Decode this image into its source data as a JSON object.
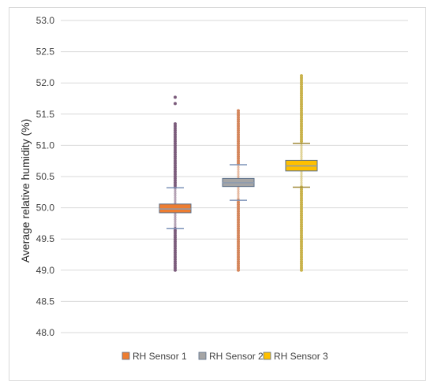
{
  "chart_data": {
    "type": "box",
    "title": "",
    "xlabel": "",
    "ylabel": "Average relative humidity (%)",
    "ylim": [
      48.0,
      53.0
    ],
    "ytick_labels": [
      "48.0",
      "48.5",
      "49.0",
      "49.5",
      "50.0",
      "50.5",
      "51.0",
      "51.5",
      "52.0",
      "52.5",
      "53.0"
    ],
    "grid": true,
    "legend_position": "bottom",
    "series": [
      {
        "name": "RH Sensor 1",
        "color": "#ED7D31",
        "q1": 49.92,
        "median": 49.98,
        "q3": 50.06,
        "whisker_low": 49.67,
        "whisker_high": 50.32,
        "outlier_min": 49.0,
        "outlier_max": 51.35,
        "extreme_outliers": [
          51.67,
          51.77
        ],
        "marker_color": "#7a5a7a"
      },
      {
        "name": "RH Sensor 2",
        "color": "#A5A5A5",
        "q1": 50.34,
        "median": 50.4,
        "q3": 50.47,
        "whisker_low": 50.12,
        "whisker_high": 50.69,
        "outlier_min": 49.0,
        "outlier_max": 51.58,
        "extreme_outliers": [],
        "marker_color": "#d4855a"
      },
      {
        "name": "RH Sensor 3",
        "color": "#FFC000",
        "q1": 50.59,
        "median": 50.67,
        "q3": 50.76,
        "whisker_low": 50.33,
        "whisker_high": 51.03,
        "outlier_min": 49.0,
        "outlier_max": 52.12,
        "extreme_outliers": [],
        "marker_color": "#c9b24a"
      }
    ]
  }
}
